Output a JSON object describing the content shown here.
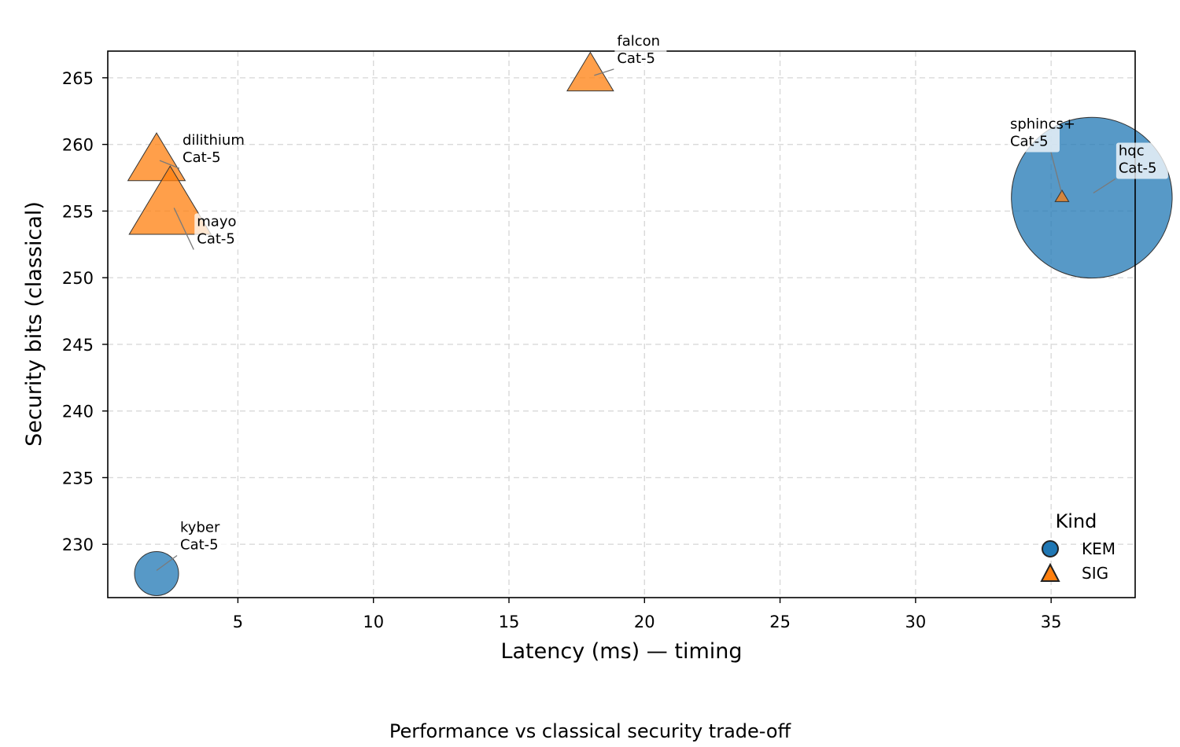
{
  "chart_data": {
    "type": "scatter",
    "xlabel": "Latency (ms) — timing",
    "ylabel": "Security bits (classical)",
    "caption": "Performance vs classical security trade-off",
    "xlim": [
      0.2,
      38.1
    ],
    "ylim": [
      226,
      267
    ],
    "x_ticks": [
      5,
      10,
      15,
      20,
      25,
      30,
      35
    ],
    "y_ticks": [
      230,
      235,
      240,
      245,
      250,
      255,
      260,
      265
    ],
    "grid": true,
    "legend": {
      "title": "Kind",
      "placement": "lower-right",
      "entries": [
        {
          "label": "KEM",
          "marker": "circle",
          "color": "#1f77b4"
        },
        {
          "label": "SIG",
          "marker": "triangle",
          "color": "#ff7f0e"
        }
      ]
    },
    "points": [
      {
        "name": "kyber",
        "category": "Cat-5",
        "kind": "KEM",
        "x": 2.0,
        "y": 227.8,
        "size": 1.0
      },
      {
        "name": "hqc",
        "category": "Cat-5",
        "kind": "KEM",
        "x": 36.5,
        "y": 256.0,
        "size": 3.65
      },
      {
        "name": "dilithium",
        "category": "Cat-5",
        "kind": "SIG",
        "x": 2.0,
        "y": 258.5,
        "size": 2.1
      },
      {
        "name": "mayo",
        "category": "Cat-5",
        "kind": "SIG",
        "x": 2.5,
        "y": 255.0,
        "size": 3.0
      },
      {
        "name": "falcon",
        "category": "Cat-5",
        "kind": "SIG",
        "x": 18.0,
        "y": 265.0,
        "size": 1.7
      },
      {
        "name": "sphincs+",
        "category": "Cat-5",
        "kind": "SIG",
        "x": 35.4,
        "y": 256.0,
        "size": 0.5
      }
    ]
  }
}
